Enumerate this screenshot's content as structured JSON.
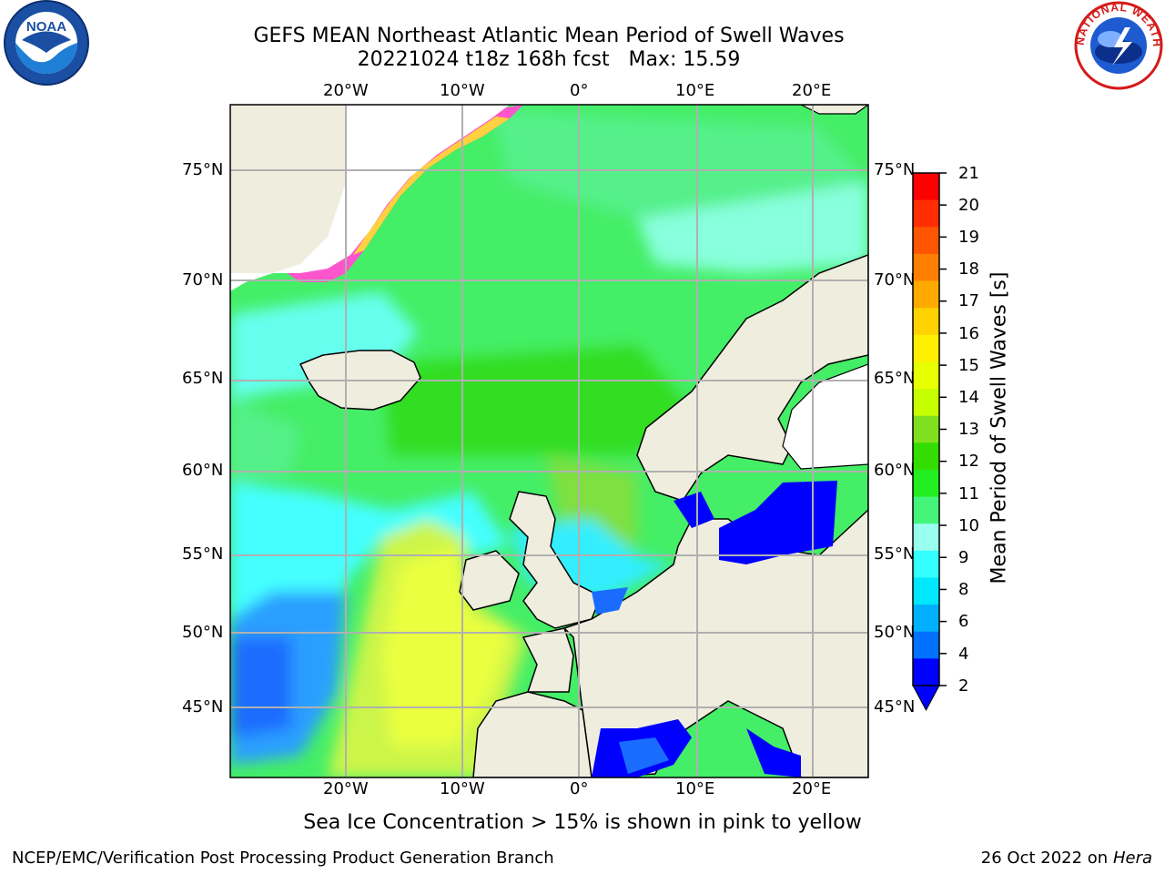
{
  "title_line1": "GEFS MEAN Northeast Atlantic Mean Period of Swell Waves",
  "title_line2": "20221024 t18z 168h fcst   Max: 15.59",
  "lon_labels": [
    "20°W",
    "10°W",
    "0°",
    "10°E",
    "20°E"
  ],
  "lat_labels": [
    "75°N",
    "70°N",
    "65°N",
    "60°N",
    "55°N",
    "50°N",
    "45°N"
  ],
  "colorbar": {
    "label": "Mean Period of Swell Waves [s]",
    "ticks": [
      "21",
      "20",
      "19",
      "18",
      "17",
      "16",
      "15",
      "14",
      "13",
      "12",
      "11",
      "10",
      "9",
      "8",
      "6",
      "4",
      "2"
    ],
    "colors": [
      "#ff0000",
      "#ff2d00",
      "#ff5500",
      "#ff8000",
      "#ffaa00",
      "#ffd200",
      "#fff000",
      "#e8ff00",
      "#c8ff00",
      "#7fe020",
      "#33dd00",
      "#22ee22",
      "#44f57a",
      "#99ffee",
      "#33ffff",
      "#00e8ff",
      "#00b0ff",
      "#0070ff",
      "#0000ff"
    ]
  },
  "subtitle": "Sea Ice Concentration > 15% is shown in pink to yellow",
  "footer_left": "NCEP/EMC/Verification Post Processing Product Generation Branch",
  "footer_right_date": "26 Oct 2022 on ",
  "footer_right_host": "Hera",
  "logo_left": "NOAA",
  "logo_right_text": "NATIONAL WEATHER SERVICE"
}
